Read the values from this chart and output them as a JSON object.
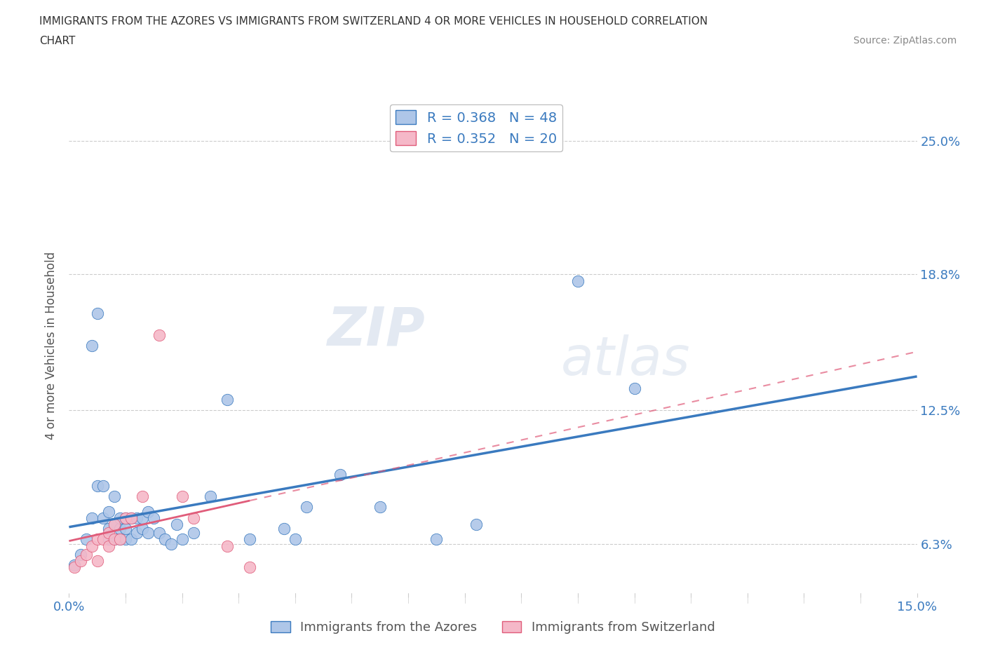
{
  "title_line1": "IMMIGRANTS FROM THE AZORES VS IMMIGRANTS FROM SWITZERLAND 4 OR MORE VEHICLES IN HOUSEHOLD CORRELATION",
  "title_line2": "CHART",
  "source": "Source: ZipAtlas.com",
  "ylabel": "4 or more Vehicles in Household",
  "xlim": [
    0.0,
    0.15
  ],
  "ylim": [
    0.04,
    0.27
  ],
  "ytick_values": [
    0.063,
    0.125,
    0.188,
    0.25
  ],
  "ytick_labels": [
    "6.3%",
    "12.5%",
    "18.8%",
    "25.0%"
  ],
  "azores_color": "#aec6e8",
  "switzerland_color": "#f5b8c8",
  "azores_line_color": "#3a7abf",
  "switzerland_line_color": "#e05c7a",
  "legend_azores_label": "R = 0.368   N = 48",
  "legend_switzerland_label": "R = 0.352   N = 20",
  "legend_azores_series": "Immigrants from the Azores",
  "legend_switzerland_series": "Immigrants from Switzerland",
  "watermark_zip": "ZIP",
  "watermark_atlas": "atlas",
  "azores_x": [
    0.001,
    0.002,
    0.003,
    0.004,
    0.004,
    0.005,
    0.005,
    0.006,
    0.006,
    0.007,
    0.007,
    0.007,
    0.008,
    0.008,
    0.008,
    0.009,
    0.009,
    0.009,
    0.01,
    0.01,
    0.01,
    0.011,
    0.011,
    0.012,
    0.012,
    0.013,
    0.013,
    0.014,
    0.014,
    0.015,
    0.016,
    0.017,
    0.018,
    0.019,
    0.02,
    0.022,
    0.025,
    0.028,
    0.032,
    0.038,
    0.04,
    0.042,
    0.048,
    0.055,
    0.065,
    0.072,
    0.09,
    0.1
  ],
  "azores_y": [
    0.053,
    0.058,
    0.065,
    0.075,
    0.155,
    0.09,
    0.17,
    0.075,
    0.09,
    0.065,
    0.07,
    0.078,
    0.065,
    0.072,
    0.085,
    0.065,
    0.07,
    0.075,
    0.065,
    0.07,
    0.075,
    0.065,
    0.075,
    0.068,
    0.075,
    0.07,
    0.075,
    0.068,
    0.078,
    0.075,
    0.068,
    0.065,
    0.063,
    0.072,
    0.065,
    0.068,
    0.085,
    0.13,
    0.065,
    0.07,
    0.065,
    0.08,
    0.095,
    0.08,
    0.065,
    0.072,
    0.185,
    0.135
  ],
  "switzerland_x": [
    0.001,
    0.002,
    0.003,
    0.004,
    0.005,
    0.005,
    0.006,
    0.007,
    0.007,
    0.008,
    0.008,
    0.009,
    0.01,
    0.011,
    0.013,
    0.016,
    0.02,
    0.022,
    0.028,
    0.032
  ],
  "switzerland_y": [
    0.052,
    0.055,
    0.058,
    0.062,
    0.065,
    0.055,
    0.065,
    0.062,
    0.068,
    0.065,
    0.072,
    0.065,
    0.075,
    0.075,
    0.085,
    0.16,
    0.085,
    0.075,
    0.062,
    0.052
  ],
  "background_color": "#ffffff",
  "grid_color": "#cccccc"
}
